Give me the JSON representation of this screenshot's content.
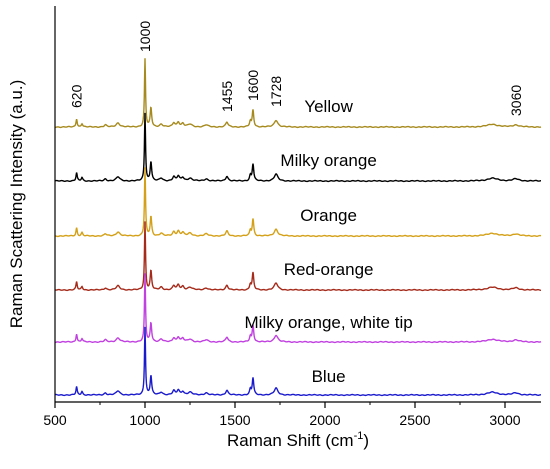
{
  "chart_data": {
    "type": "line",
    "title": "",
    "xlabel": "Raman Shift (cm",
    "xlabel_sup": "-1",
    "xlabel_close": ")",
    "ylabel": "Raman Scattering Intensity (a.u.)",
    "xlim": [
      500,
      3200
    ],
    "x_ticks": [
      "500",
      "1000",
      "1500",
      "2000",
      "2500",
      "3000"
    ],
    "x_tick_values": [
      500,
      1000,
      1500,
      2000,
      2500,
      3000
    ],
    "y_ticks_shown": false,
    "grid": false,
    "legend": "none (series labeled inline)",
    "peak_annotations": [
      {
        "label": "620",
        "x": 620
      },
      {
        "label": "1000",
        "x": 1000
      },
      {
        "label": "1455",
        "x": 1455
      },
      {
        "label": "1600",
        "x": 1600
      },
      {
        "label": "1728",
        "x": 1728
      },
      {
        "label": "3060",
        "x": 3060
      }
    ],
    "peaks": [
      {
        "x": 620,
        "h": 0.12,
        "w": 4
      },
      {
        "x": 650,
        "h": 0.05,
        "w": 5
      },
      {
        "x": 780,
        "h": 0.03,
        "w": 8
      },
      {
        "x": 850,
        "h": 0.06,
        "w": 12
      },
      {
        "x": 1000,
        "h": 1.0,
        "w": 3.5
      },
      {
        "x": 1033,
        "h": 0.28,
        "w": 5
      },
      {
        "x": 1090,
        "h": 0.04,
        "w": 10
      },
      {
        "x": 1160,
        "h": 0.06,
        "w": 8
      },
      {
        "x": 1185,
        "h": 0.07,
        "w": 8
      },
      {
        "x": 1210,
        "h": 0.05,
        "w": 8
      },
      {
        "x": 1250,
        "h": 0.04,
        "w": 14
      },
      {
        "x": 1340,
        "h": 0.03,
        "w": 12
      },
      {
        "x": 1455,
        "h": 0.07,
        "w": 8
      },
      {
        "x": 1585,
        "h": 0.08,
        "w": 5
      },
      {
        "x": 1600,
        "h": 0.25,
        "w": 5
      },
      {
        "x": 1728,
        "h": 0.1,
        "w": 12
      },
      {
        "x": 2930,
        "h": 0.04,
        "w": 35
      },
      {
        "x": 3060,
        "h": 0.03,
        "w": 20
      }
    ],
    "series": [
      {
        "name": "Yellow",
        "color": "#a68a1e",
        "baseline": 0.0,
        "scale": 1.0
      },
      {
        "name": "Milky orange",
        "color": "#000000",
        "baseline": 0.0,
        "scale": 1.0
      },
      {
        "name": "Orange",
        "color": "#d4a017",
        "baseline": 0.0,
        "scale": 1.0
      },
      {
        "name": "Red-orange",
        "color": "#a52a1a",
        "baseline": 0.0,
        "scale": 1.0
      },
      {
        "name": "Milky orange, white tip",
        "color": "#c040e0",
        "baseline": 0.0,
        "scale": 1.0
      },
      {
        "name": "Blue",
        "color": "#1a1acd",
        "baseline": 0.0,
        "scale": 1.0
      }
    ]
  }
}
